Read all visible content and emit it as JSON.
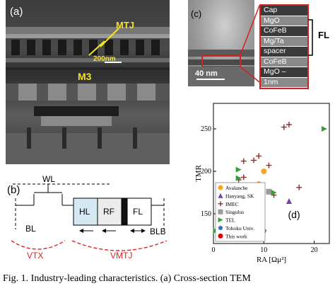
{
  "panel_a": {
    "label": "(a)",
    "mtj_label": "MTJ",
    "m3_label": "M3",
    "scale_label": "200nm"
  },
  "panel_b": {
    "label": "(b)",
    "wl": "WL",
    "bl": "BL",
    "blb": "BLB",
    "hl": "HL",
    "rf": "RF",
    "fl": "FL",
    "vtx": "VTX",
    "vmtj": "VMTJ"
  },
  "panel_c": {
    "label": "(c)",
    "scale_label": "40 nm",
    "fl_label": "FL",
    "layers": [
      "Cap",
      "MgO",
      "CoFeB",
      "Mg/Ta",
      "spacer",
      "CoFeB",
      "MgO –",
      "1nm"
    ],
    "layer_colors": [
      "#3a3a3a",
      "#8a8a8a",
      "#3a3a3a",
      "#8a8a8a",
      "#3a3a3a",
      "#8a8a8a",
      "#3a3a3a",
      "#8a8a8a"
    ]
  },
  "panel_d": {
    "label": "(d)",
    "chart_data": {
      "type": "scatter",
      "xlabel": "RA [Ωμ²]",
      "ylabel": "TMR",
      "xlim": [
        0,
        23
      ],
      "ylim": [
        115,
        280
      ],
      "x_ticks": [
        0,
        10,
        20
      ],
      "y_ticks": [
        150,
        200,
        250
      ],
      "legend_position": "bottom-left",
      "series": [
        {
          "name": "Avalanche",
          "marker": "circle",
          "color": "#f5a623",
          "points": [
            [
              10,
              200
            ],
            [
              9,
              185
            ],
            [
              8,
              165
            ]
          ]
        },
        {
          "name": "Hanyang, SK",
          "marker": "triangle-up",
          "color": "#7b3fa0",
          "points": [
            [
              15,
              165
            ]
          ]
        },
        {
          "name": "IMEC",
          "marker": "plus",
          "color": "#8b2e2e",
          "points": [
            [
              15,
              255
            ],
            [
              14,
              252
            ],
            [
              9,
              218
            ],
            [
              8,
              213
            ],
            [
              6,
              212
            ],
            [
              11,
              207
            ],
            [
              6,
              193
            ],
            [
              5,
              190
            ],
            [
              4,
              184
            ],
            [
              12,
              172
            ],
            [
              17,
              181
            ],
            [
              3,
              160
            ],
            [
              5,
              151
            ],
            [
              2,
              145
            ],
            [
              1,
              140
            ]
          ]
        },
        {
          "name": "Singulus",
          "marker": "square",
          "color": "#9a9a9a",
          "points": [
            [
              11,
              176
            ]
          ]
        },
        {
          "name": "TEL",
          "marker": "triangle-right",
          "color": "#3a9b3a",
          "points": [
            [
              22,
              250
            ],
            [
              5,
              202
            ],
            [
              5,
              192
            ],
            [
              12,
              175
            ],
            [
              2,
              155
            ],
            [
              6,
              140
            ],
            [
              0.5,
              130
            ]
          ]
        },
        {
          "name": "Tohoku Univ.",
          "marker": "pentagon",
          "color": "#3b6db5",
          "points": [
            [
              10,
              130
            ]
          ]
        },
        {
          "name": "This work",
          "marker": "circle",
          "color": "#e00000",
          "points": [
            [
              2,
              140
            ]
          ]
        }
      ]
    }
  },
  "caption": "Fig. 1. Industry-leading characteristics. (a) Cross-section TEM"
}
